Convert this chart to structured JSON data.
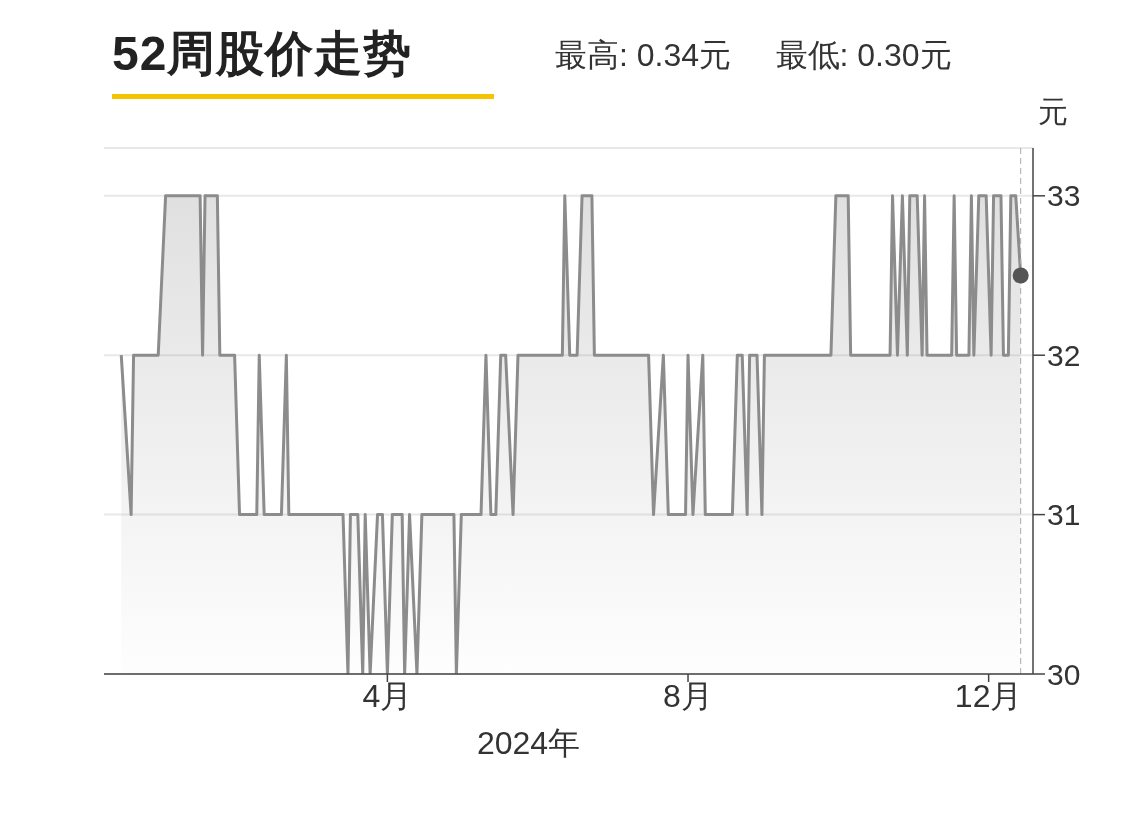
{
  "chart_data": {
    "type": "area",
    "title": "52周股价走势",
    "subtitle": "最高: 0.34元     最低: 0.30元",
    "ylabel": "元",
    "xlabel": "2024年",
    "xlim": [
      "2023-12-08",
      "2024-12-19"
    ],
    "xticks": [
      {
        "value": "2024-04-01",
        "label": "4月"
      },
      {
        "value": "2024-08-01",
        "label": "8月"
      },
      {
        "value": "2024-12-01",
        "label": "12月"
      }
    ],
    "ylim": [
      30,
      33.3
    ],
    "yticks": [
      30,
      31,
      32,
      33
    ],
    "grid": "y",
    "marker": "none",
    "line_style": "solid",
    "ref_lines": [
      {
        "axis": "x",
        "value": "2024-12-14",
        "color": "#aaaaaa",
        "line_style": "dashed"
      }
    ],
    "series": [
      {
        "color": "#8c8c8c",
        "x": [
          "2023-12-15",
          "2023-12-19",
          "2023-12-20",
          "2023-12-30",
          "2024-01-02",
          "2024-01-16",
          "2024-01-17",
          "2024-01-18",
          "2024-01-23",
          "2024-01-24",
          "2024-01-30",
          "2024-02-01",
          "2024-02-08",
          "2024-02-09",
          "2024-02-11",
          "2024-02-18",
          "2024-02-20",
          "2024-02-21",
          "2024-03-14",
          "2024-03-16",
          "2024-03-17",
          "2024-03-20",
          "2024-03-22",
          "2024-03-23",
          "2024-03-25",
          "2024-03-28",
          "2024-03-30",
          "2024-04-01",
          "2024-04-03",
          "2024-04-07",
          "2024-04-08",
          "2024-04-10",
          "2024-04-13",
          "2024-04-15",
          "2024-04-28",
          "2024-04-29",
          "2024-05-01",
          "2024-05-09",
          "2024-05-11",
          "2024-05-13",
          "2024-05-15",
          "2024-05-17",
          "2024-05-19",
          "2024-05-22",
          "2024-05-24",
          "2024-06-11",
          "2024-06-12",
          "2024-06-14",
          "2024-06-17",
          "2024-06-19",
          "2024-06-23",
          "2024-06-24",
          "2024-07-16",
          "2024-07-18",
          "2024-07-22",
          "2024-07-24",
          "2024-07-31",
          "2024-08-01",
          "2024-08-03",
          "2024-08-07",
          "2024-08-08",
          "2024-08-19",
          "2024-08-21",
          "2024-08-23",
          "2024-08-25",
          "2024-08-26",
          "2024-08-29",
          "2024-08-31",
          "2024-09-01",
          "2024-09-28",
          "2024-09-30",
          "2024-10-05",
          "2024-10-06",
          "2024-10-22",
          "2024-10-23",
          "2024-10-25",
          "2024-10-27",
          "2024-10-29",
          "2024-10-30",
          "2024-11-02",
          "2024-11-04",
          "2024-11-05",
          "2024-11-06",
          "2024-11-16",
          "2024-11-17",
          "2024-11-18",
          "2024-11-23",
          "2024-11-24",
          "2024-11-25",
          "2024-11-27",
          "2024-11-30",
          "2024-12-02",
          "2024-12-03",
          "2024-12-06",
          "2024-12-07",
          "2024-12-09",
          "2024-12-10",
          "2024-12-12",
          "2024-12-14"
        ],
        "values": [
          32,
          31,
          32,
          32,
          33,
          33,
          32,
          33,
          33,
          32,
          32,
          31,
          31,
          32,
          31,
          31,
          32,
          31,
          31,
          30,
          31,
          31,
          30,
          31,
          30,
          31,
          31,
          30,
          31,
          31,
          30,
          31,
          30,
          31,
          31,
          30,
          31,
          31,
          32,
          31,
          31,
          32,
          32,
          31,
          32,
          32,
          33,
          32,
          32,
          33,
          33,
          32,
          32,
          31,
          32,
          31,
          31,
          32,
          31,
          32,
          31,
          31,
          32,
          32,
          31,
          32,
          32,
          31,
          32,
          32,
          33,
          33,
          32,
          32,
          33,
          32,
          33,
          32,
          33,
          33,
          32,
          33,
          32,
          32,
          33,
          32,
          32,
          33,
          32,
          33,
          33,
          32,
          33,
          33,
          32,
          32,
          33,
          33,
          32.5
        ]
      },
      {
        "type": "scatter",
        "marker": "circle",
        "color": "#555555",
        "x": [
          "2024-12-14"
        ],
        "values": [
          32.5
        ]
      }
    ]
  }
}
